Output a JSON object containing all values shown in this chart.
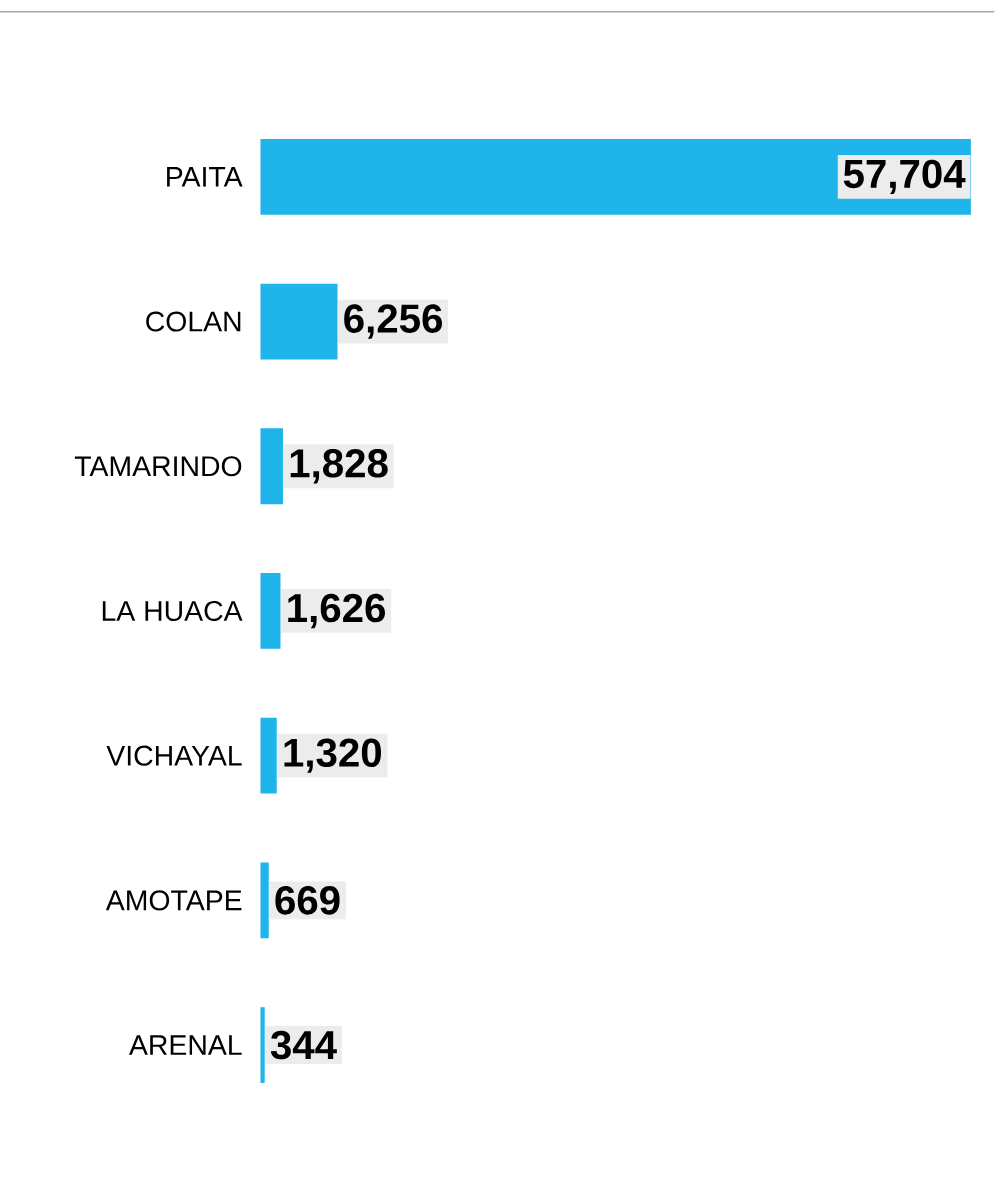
{
  "chart_data": {
    "type": "bar",
    "orientation": "horizontal",
    "categories": [
      "PAITA",
      "COLAN",
      "TAMARINDO",
      "LA HUACA",
      "VICHAYAL",
      "AMOTAPE",
      "ARENAL"
    ],
    "values": [
      57704,
      6256,
      1828,
      1626,
      1320,
      669,
      344
    ],
    "value_labels": [
      "57,704",
      "6,256",
      "1,828",
      "1,626",
      "1,320",
      "669",
      "344"
    ],
    "color": "#1fb5ea"
  }
}
